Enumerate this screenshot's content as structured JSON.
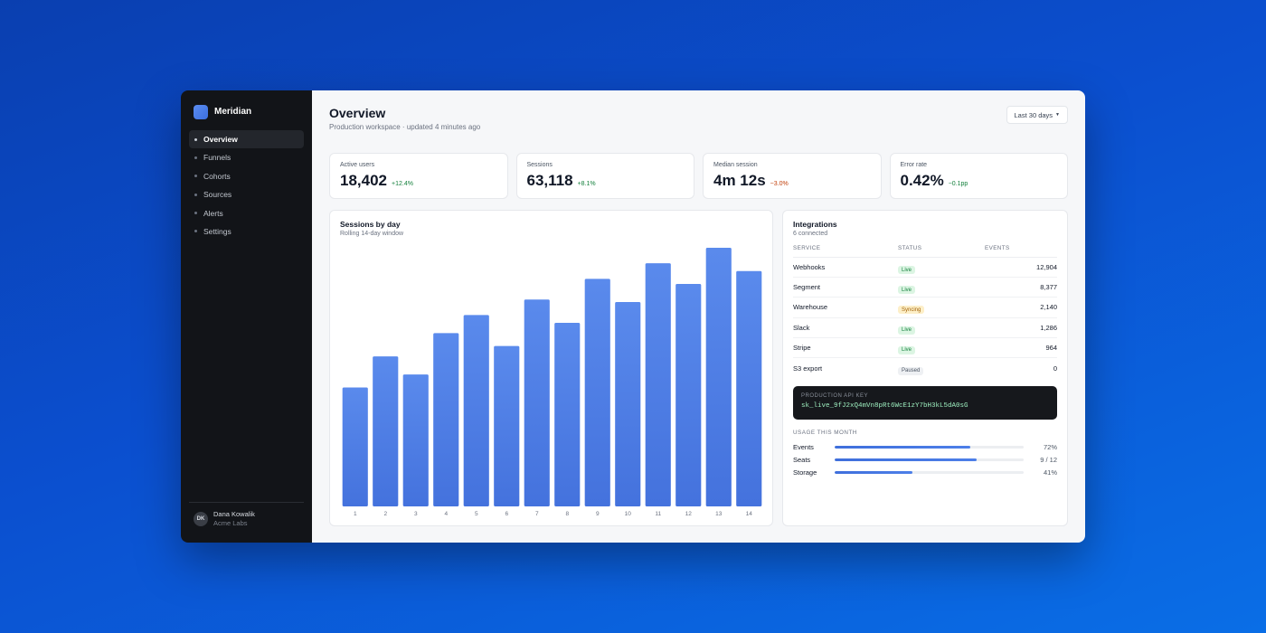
{
  "app": {
    "name": "Meridian"
  },
  "sidebar": {
    "items": [
      {
        "label": "Overview",
        "active": true
      },
      {
        "label": "Funnels",
        "active": false
      },
      {
        "label": "Cohorts",
        "active": false
      },
      {
        "label": "Sources",
        "active": false
      },
      {
        "label": "Alerts",
        "active": false
      },
      {
        "label": "Settings",
        "active": false
      }
    ],
    "user": {
      "initials": "DK",
      "name": "Dana Kowalik",
      "org": "Acme Labs"
    }
  },
  "header": {
    "title": "Overview",
    "subtitle": "Production workspace · updated 4 minutes ago",
    "range_label": "Last 30 days"
  },
  "kpis": [
    {
      "label": "Active users",
      "value": "18,402",
      "delta": "+12.4%",
      "trend": "up"
    },
    {
      "label": "Sessions",
      "value": "63,118",
      "delta": "+8.1%",
      "trend": "up"
    },
    {
      "label": "Median session",
      "value": "4m 12s",
      "delta": "−3.0%",
      "trend": "down"
    },
    {
      "label": "Error rate",
      "value": "0.42%",
      "delta": "−0.1pp",
      "trend": "up"
    }
  ],
  "chart": {
    "title": "Sessions by day",
    "subtitle": "Rolling 14-day window"
  },
  "chart_data": {
    "type": "bar",
    "title": "Sessions by day",
    "subtitle": "Rolling 14-day window",
    "categories": [
      "1",
      "2",
      "3",
      "4",
      "5",
      "6",
      "7",
      "8",
      "9",
      "10",
      "11",
      "12",
      "13",
      "14"
    ],
    "values": [
      46,
      58,
      51,
      67,
      74,
      62,
      80,
      71,
      88,
      79,
      94,
      86,
      100,
      91
    ],
    "ylim": [
      0,
      100
    ],
    "color": "#4a7be3",
    "grid": false
  },
  "integrations": {
    "title": "Integrations",
    "subtitle": "6 connected",
    "columns": {
      "service": "SERVICE",
      "status": "STATUS",
      "events": "EVENTS"
    },
    "rows": [
      {
        "service": "Webhooks",
        "status": "Live",
        "kind": "live",
        "events": "12,904"
      },
      {
        "service": "Segment",
        "status": "Live",
        "kind": "live",
        "events": "8,377"
      },
      {
        "service": "Warehouse",
        "status": "Syncing",
        "kind": "sync",
        "events": "2,140"
      },
      {
        "service": "Slack",
        "status": "Live",
        "kind": "live",
        "events": "1,286"
      },
      {
        "service": "Stripe",
        "status": "Live",
        "kind": "live",
        "events": "964"
      },
      {
        "service": "S3 export",
        "status": "Paused",
        "kind": "paused",
        "events": "0"
      }
    ],
    "api_key": {
      "label": "PRODUCTION API KEY",
      "value": "sk_live_9fJ2xQ4mVn8pRt6WcE1zY7bH3kL5dA0sG"
    },
    "usage_title": "USAGE THIS MONTH",
    "usage": [
      {
        "label": "Events",
        "value": "72%",
        "fraction": 0.72
      },
      {
        "label": "Seats",
        "value": "9 / 12",
        "fraction": 0.75
      },
      {
        "label": "Storage",
        "value": "41%",
        "fraction": 0.41
      }
    ]
  }
}
